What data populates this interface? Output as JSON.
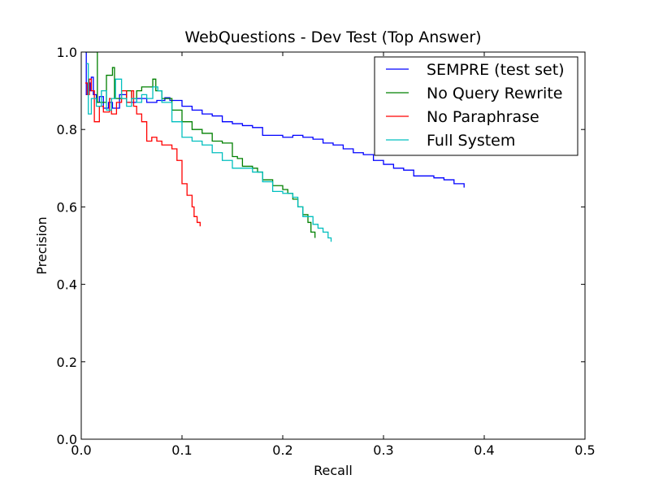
{
  "chart_data": {
    "type": "line",
    "title": "WebQuestions - Dev Test (Top Answer)",
    "xlabel": "Recall",
    "ylabel": "Precision",
    "xlim": [
      0.0,
      0.5
    ],
    "ylim": [
      0.0,
      1.0
    ],
    "xticks": [
      "0.0",
      "0.1",
      "0.2",
      "0.3",
      "0.4",
      "0.5"
    ],
    "yticks": [
      "0.0",
      "0.2",
      "0.4",
      "0.6",
      "0.8",
      "1.0"
    ],
    "grid": false,
    "legend_position": "top-right",
    "series": [
      {
        "name": "SEMPRE (test set)",
        "color": "#0000ff",
        "points": [
          [
            0.004,
            1.0
          ],
          [
            0.005,
            0.89
          ],
          [
            0.007,
            0.92
          ],
          [
            0.009,
            0.9
          ],
          [
            0.01,
            0.935
          ],
          [
            0.012,
            0.89
          ],
          [
            0.015,
            0.87
          ],
          [
            0.018,
            0.885
          ],
          [
            0.022,
            0.855
          ],
          [
            0.027,
            0.87
          ],
          [
            0.031,
            0.855
          ],
          [
            0.038,
            0.89
          ],
          [
            0.045,
            0.87
          ],
          [
            0.055,
            0.88
          ],
          [
            0.065,
            0.87
          ],
          [
            0.075,
            0.875
          ],
          [
            0.083,
            0.882
          ],
          [
            0.088,
            0.875
          ],
          [
            0.1,
            0.86
          ],
          [
            0.11,
            0.85
          ],
          [
            0.12,
            0.84
          ],
          [
            0.13,
            0.835
          ],
          [
            0.14,
            0.82
          ],
          [
            0.15,
            0.815
          ],
          [
            0.16,
            0.81
          ],
          [
            0.17,
            0.805
          ],
          [
            0.18,
            0.785
          ],
          [
            0.2,
            0.78
          ],
          [
            0.21,
            0.785
          ],
          [
            0.22,
            0.78
          ],
          [
            0.23,
            0.775
          ],
          [
            0.24,
            0.765
          ],
          [
            0.25,
            0.76
          ],
          [
            0.26,
            0.75
          ],
          [
            0.27,
            0.74
          ],
          [
            0.28,
            0.735
          ],
          [
            0.29,
            0.72
          ],
          [
            0.3,
            0.71
          ],
          [
            0.31,
            0.7
          ],
          [
            0.32,
            0.695
          ],
          [
            0.33,
            0.68
          ],
          [
            0.34,
            0.68
          ],
          [
            0.35,
            0.675
          ],
          [
            0.36,
            0.67
          ],
          [
            0.37,
            0.66
          ],
          [
            0.38,
            0.65
          ]
        ]
      },
      {
        "name": "No Query Rewrite",
        "color": "#008000",
        "points": [
          [
            0.004,
            1.0
          ],
          [
            0.015,
            1.0
          ],
          [
            0.016,
            0.87
          ],
          [
            0.025,
            0.94
          ],
          [
            0.031,
            0.96
          ],
          [
            0.033,
            0.88
          ],
          [
            0.045,
            0.9
          ],
          [
            0.05,
            0.88
          ],
          [
            0.055,
            0.9
          ],
          [
            0.06,
            0.91
          ],
          [
            0.071,
            0.93
          ],
          [
            0.074,
            0.9
          ],
          [
            0.08,
            0.88
          ],
          [
            0.09,
            0.85
          ],
          [
            0.1,
            0.82
          ],
          [
            0.11,
            0.8
          ],
          [
            0.12,
            0.79
          ],
          [
            0.13,
            0.77
          ],
          [
            0.14,
            0.765
          ],
          [
            0.15,
            0.73
          ],
          [
            0.155,
            0.725
          ],
          [
            0.16,
            0.705
          ],
          [
            0.17,
            0.7
          ],
          [
            0.175,
            0.69
          ],
          [
            0.18,
            0.67
          ],
          [
            0.19,
            0.655
          ],
          [
            0.2,
            0.645
          ],
          [
            0.205,
            0.635
          ],
          [
            0.21,
            0.62
          ],
          [
            0.215,
            0.6
          ],
          [
            0.22,
            0.58
          ],
          [
            0.225,
            0.56
          ],
          [
            0.228,
            0.535
          ],
          [
            0.232,
            0.52
          ]
        ]
      },
      {
        "name": "No Paraphrase",
        "color": "#ff0000",
        "points": [
          [
            0.004,
            0.92
          ],
          [
            0.006,
            0.89
          ],
          [
            0.008,
            0.93
          ],
          [
            0.01,
            0.9
          ],
          [
            0.013,
            0.82
          ],
          [
            0.018,
            0.86
          ],
          [
            0.022,
            0.845
          ],
          [
            0.028,
            0.88
          ],
          [
            0.03,
            0.84
          ],
          [
            0.035,
            0.87
          ],
          [
            0.04,
            0.9
          ],
          [
            0.045,
            0.87
          ],
          [
            0.05,
            0.9
          ],
          [
            0.052,
            0.86
          ],
          [
            0.055,
            0.84
          ],
          [
            0.06,
            0.82
          ],
          [
            0.065,
            0.77
          ],
          [
            0.07,
            0.78
          ],
          [
            0.075,
            0.77
          ],
          [
            0.08,
            0.76
          ],
          [
            0.085,
            0.76
          ],
          [
            0.09,
            0.75
          ],
          [
            0.095,
            0.72
          ],
          [
            0.1,
            0.66
          ],
          [
            0.105,
            0.63
          ],
          [
            0.11,
            0.6
          ],
          [
            0.112,
            0.575
          ],
          [
            0.115,
            0.56
          ],
          [
            0.118,
            0.55
          ]
        ]
      },
      {
        "name": "Full System",
        "color": "#00bfbf",
        "points": [
          [
            0.005,
            0.97
          ],
          [
            0.007,
            0.84
          ],
          [
            0.01,
            0.88
          ],
          [
            0.015,
            0.86
          ],
          [
            0.02,
            0.9
          ],
          [
            0.025,
            0.85
          ],
          [
            0.03,
            0.88
          ],
          [
            0.034,
            0.93
          ],
          [
            0.04,
            0.88
          ],
          [
            0.045,
            0.86
          ],
          [
            0.05,
            0.88
          ],
          [
            0.055,
            0.87
          ],
          [
            0.06,
            0.89
          ],
          [
            0.065,
            0.88
          ],
          [
            0.071,
            0.91
          ],
          [
            0.076,
            0.9
          ],
          [
            0.08,
            0.87
          ],
          [
            0.09,
            0.82
          ],
          [
            0.1,
            0.78
          ],
          [
            0.11,
            0.77
          ],
          [
            0.12,
            0.76
          ],
          [
            0.13,
            0.74
          ],
          [
            0.14,
            0.72
          ],
          [
            0.15,
            0.7
          ],
          [
            0.16,
            0.7
          ],
          [
            0.17,
            0.69
          ],
          [
            0.18,
            0.665
          ],
          [
            0.19,
            0.64
          ],
          [
            0.2,
            0.635
          ],
          [
            0.21,
            0.625
          ],
          [
            0.215,
            0.6
          ],
          [
            0.22,
            0.575
          ],
          [
            0.23,
            0.555
          ],
          [
            0.235,
            0.545
          ],
          [
            0.24,
            0.535
          ],
          [
            0.245,
            0.52
          ],
          [
            0.248,
            0.51
          ]
        ]
      }
    ]
  }
}
